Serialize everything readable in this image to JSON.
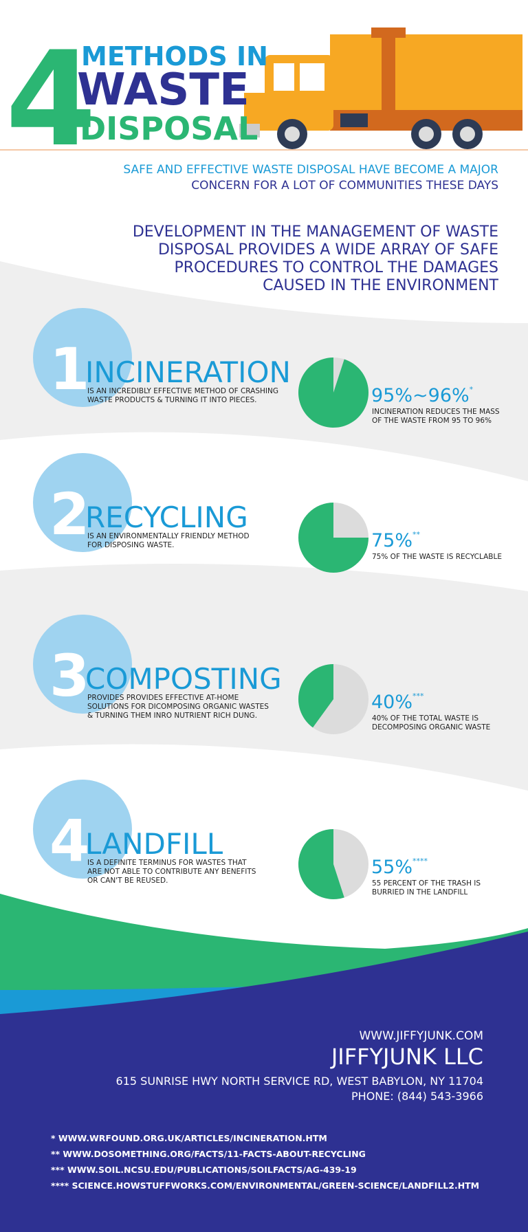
{
  "header": {
    "number": "4",
    "line1": "METHODS IN",
    "line2": "WASTE",
    "line3": "DISPOSAL"
  },
  "intro": {
    "lines": [
      "SAFE AND EFFECTIVE WASTE DISPOSAL HAVE BECOME A MAJOR",
      "CONCERN FOR A LOT OF COMMUNITIES THESE DAYS"
    ]
  },
  "development": {
    "lines": [
      "DEVELOPMENT IN THE MANAGEMENT OF WASTE",
      "DISPOSAL PROVIDES A WIDE ARRAY OF SAFE",
      "PROCEDURES TO CONTROL THE DAMAGES",
      "CAUSED IN THE ENVIRONMENT"
    ]
  },
  "methods": [
    {
      "number": "1",
      "title": "INCINERATION",
      "description": [
        "IS AN INCREDIBLY EFFECTIVE METHOD OF CRASHING",
        "WASTE PRODUCTS & TURNING IT INTO PIECES."
      ],
      "stat": "95%~96%",
      "mark": "*",
      "note": [
        "INCINERATION REDUCES THE MASS",
        "OF THE WASTE FROM 95 TO 96%"
      ],
      "percent": 95
    },
    {
      "number": "2",
      "title": "RECYCLING",
      "description": [
        "IS AN ENVIRONMENTALLY FRIENDLY METHOD",
        "FOR DISPOSING WASTE."
      ],
      "stat": "75%",
      "mark": "**",
      "note": [
        "75% OF THE WASTE IS RECYCLABLE"
      ],
      "percent": 75
    },
    {
      "number": "3",
      "title": "COMPOSTING",
      "description": [
        "PROVIDES PROVIDES EFFECTIVE AT-HOME",
        "SOLUTIONS FOR DICOMPOSING ORGANIC WASTES",
        "& TURNING THEM INRO NUTRIENT RICH DUNG."
      ],
      "stat": "40%",
      "mark": "***",
      "note": [
        "40% OF THE TOTAL WASTE IS",
        "DECOMPOSING ORGANIC WASTE"
      ],
      "percent": 40
    },
    {
      "number": "4",
      "title": "LANDFILL",
      "description": [
        "IS A DEFINITE TERMINUS FOR WASTES THAT",
        "ARE NOT ABLE TO CONTRIBUTE ANY BENEFITS",
        "OR CAN'T BE REUSED."
      ],
      "stat": "55%",
      "mark": "****",
      "note": [
        "55 PERCENT OF THE TRASH IS",
        "BURRIED IN THE LANDFILL"
      ],
      "percent": 55
    }
  ],
  "footer": {
    "website": "WWW.JIFFYJUNK.COM",
    "company": "JIFFYJUNK LLC",
    "address": "615 SUNRISE HWY NORTH SERVICE RD, WEST BABYLON, NY 11704",
    "phone": "PHONE: (844) 543-3966",
    "references": [
      "* WWW.WRFOUND.ORG.UK/ARTICLES/INCINERATION.HTM",
      "** WWW.DOSOMETHING.ORG/FACTS/11-FACTS-ABOUT-RECYCLING",
      "*** WWW.SOIL.NCSU.EDU/PUBLICATIONS/SOILFACTS/AG-439-19",
      "**** SCIENCE.HOWSTUFFWORKS.COM/ENVIRONMENTAL/GREEN-SCIENCE/LANDFILL2.HTM"
    ]
  }
}
